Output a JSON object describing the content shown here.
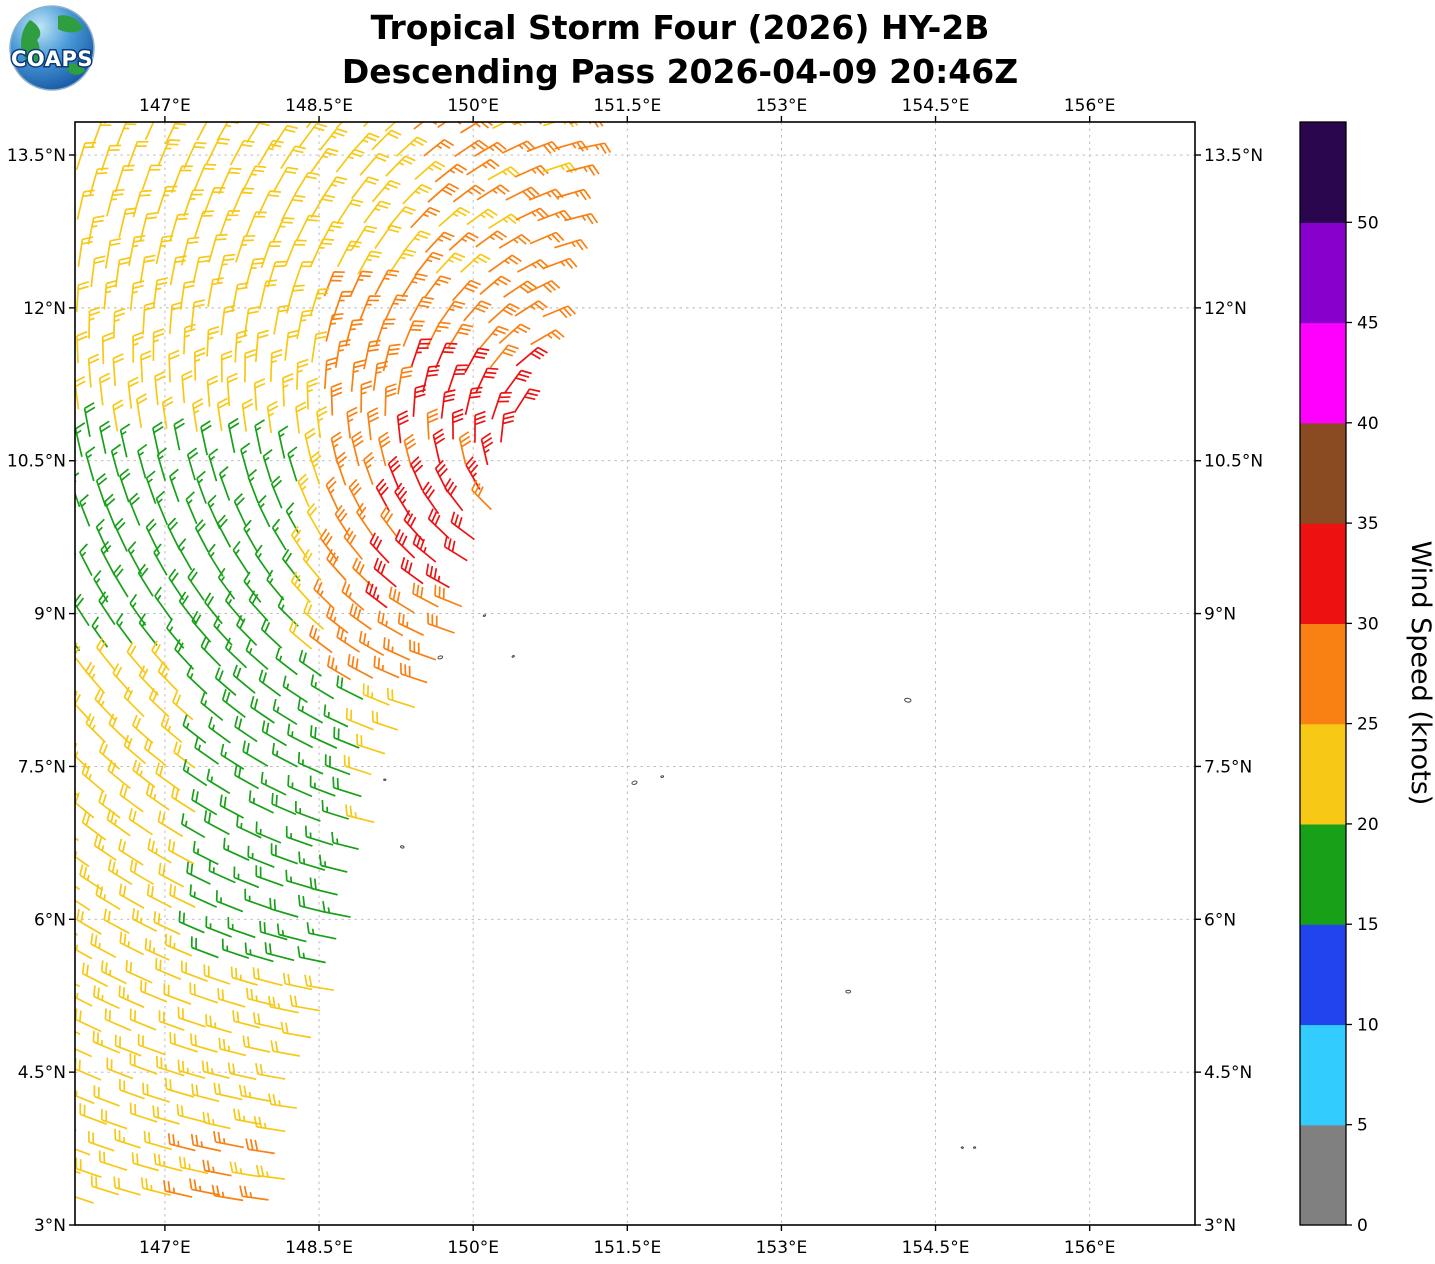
{
  "logo": {
    "text": "COAPS"
  },
  "title": {
    "line1": "Tropical Storm Four (2026) HY-2B",
    "line2": "Descending Pass 2026-04-09 20:46Z"
  },
  "colorbar": {
    "label": "Wind Speed (knots)",
    "tick_values": [
      0,
      5,
      10,
      15,
      20,
      25,
      30,
      35,
      40,
      45,
      50
    ],
    "min": 0,
    "max": 55,
    "segments": [
      {
        "from": 0,
        "to": 5,
        "color": "#808080"
      },
      {
        "from": 5,
        "to": 10,
        "color": "#33CCFF"
      },
      {
        "from": 10,
        "to": 15,
        "color": "#2244EE"
      },
      {
        "from": 15,
        "to": 20,
        "color": "#18A018"
      },
      {
        "from": 20,
        "to": 25,
        "color": "#F7C815"
      },
      {
        "from": 25,
        "to": 30,
        "color": "#F98012"
      },
      {
        "from": 30,
        "to": 35,
        "color": "#EE1111"
      },
      {
        "from": 35,
        "to": 40,
        "color": "#8A4A22"
      },
      {
        "from": 40,
        "to": 45,
        "color": "#FF00FF"
      },
      {
        "from": 45,
        "to": 50,
        "color": "#8800CC"
      },
      {
        "from": 50,
        "to": 55,
        "color": "#2A064E"
      }
    ]
  },
  "axes": {
    "lon_range": [
      146.125,
      157.025
    ],
    "lat_range": [
      3.0,
      13.824
    ],
    "lon_ticks": [
      {
        "value": 147,
        "label": "147°E"
      },
      {
        "value": 148.5,
        "label": "148.5°E"
      },
      {
        "value": 150,
        "label": "150°E"
      },
      {
        "value": 151.5,
        "label": "151.5°E"
      },
      {
        "value": 153,
        "label": "153°E"
      },
      {
        "value": 154.5,
        "label": "154.5°E"
      },
      {
        "value": 156,
        "label": "156°E"
      }
    ],
    "lat_ticks": [
      {
        "value": 3,
        "label": "3°N"
      },
      {
        "value": 4.5,
        "label": "4.5°N"
      },
      {
        "value": 6,
        "label": "6°N"
      },
      {
        "value": 7.5,
        "label": "7.5°N"
      },
      {
        "value": 9,
        "label": "9°N"
      },
      {
        "value": 10.5,
        "label": "10.5°N"
      },
      {
        "value": 12,
        "label": "12°N"
      },
      {
        "value": 13.5,
        "label": "13.5°N"
      }
    ]
  },
  "chart_data": {
    "type": "wind_barb_map",
    "title": "Tropical Storm Four (2026) HY-2B — Descending Pass 2026-04-09 20:46Z",
    "satellite": "HY-2B",
    "pass": "Descending",
    "datetime": "2026-04-09 20:46Z",
    "units": "knots",
    "storm_center": {
      "lon": 150.9,
      "lat": 10.45
    },
    "swath": {
      "lat_min": 3.05,
      "lat_max": 13.8,
      "row_step_deg": 0.235,
      "col_step_deg": 0.25,
      "left_lon": 146.16,
      "right_edge": [
        [
          3.0,
          148.15
        ],
        [
          4.0,
          148.25
        ],
        [
          4.5,
          148.4
        ],
        [
          5.5,
          148.75
        ],
        [
          6.0,
          148.85
        ],
        [
          7.0,
          149.05
        ],
        [
          7.5,
          149.2
        ],
        [
          8.0,
          149.45
        ],
        [
          9.0,
          149.9
        ],
        [
          10.0,
          150.2
        ],
        [
          10.5,
          150.35
        ],
        [
          11.5,
          150.55
        ],
        [
          12.0,
          150.7
        ],
        [
          13.0,
          150.95
        ],
        [
          13.9,
          151.1
        ]
      ]
    },
    "speed_zones": [
      {
        "name": "red-core",
        "lat": [
          8.95,
          11.6
        ],
        "lon": [
          149.15,
          150.7
        ],
        "speed": 31
      },
      {
        "name": "orange-ring",
        "lat": [
          8.2,
          12.15
        ],
        "lon": [
          148.55,
          150.9
        ],
        "speed": 27
      },
      {
        "name": "orange-top",
        "lat": [
          12.15,
          14.0
        ],
        "lon": [
          149.35,
          151.3
        ],
        "speed": 26
      },
      {
        "name": "green-west",
        "lat": [
          8.45,
          10.75
        ],
        "lon": [
          145.9,
          148.35
        ],
        "speed": 17
      },
      {
        "name": "green-south",
        "lat": [
          5.45,
          8.45
        ],
        "lon": [
          147.35,
          149.0
        ],
        "speed": 17
      },
      {
        "name": "orange-bottom",
        "lat": [
          2.9,
          3.85
        ],
        "lon": [
          147.25,
          148.7
        ],
        "speed": 26
      }
    ],
    "default_speed": 22,
    "islands": [
      {
        "lon": 150.11,
        "lat": 8.98,
        "r": 1.2
      },
      {
        "lon": 149.68,
        "lat": 8.57,
        "r": 2.4
      },
      {
        "lon": 150.39,
        "lat": 8.58,
        "r": 1.2
      },
      {
        "lon": 154.23,
        "lat": 8.15,
        "r": 3.2
      },
      {
        "lon": 151.57,
        "lat": 7.34,
        "r": 2.6
      },
      {
        "lon": 151.84,
        "lat": 7.4,
        "r": 1.4
      },
      {
        "lon": 149.14,
        "lat": 7.37,
        "r": 1.1
      },
      {
        "lon": 149.31,
        "lat": 6.71,
        "r": 1.8
      },
      {
        "lon": 153.65,
        "lat": 5.29,
        "r": 2.4
      },
      {
        "lon": 154.76,
        "lat": 3.76,
        "r": 1.1
      },
      {
        "lon": 154.88,
        "lat": 3.76,
        "r": 1.1
      }
    ]
  }
}
